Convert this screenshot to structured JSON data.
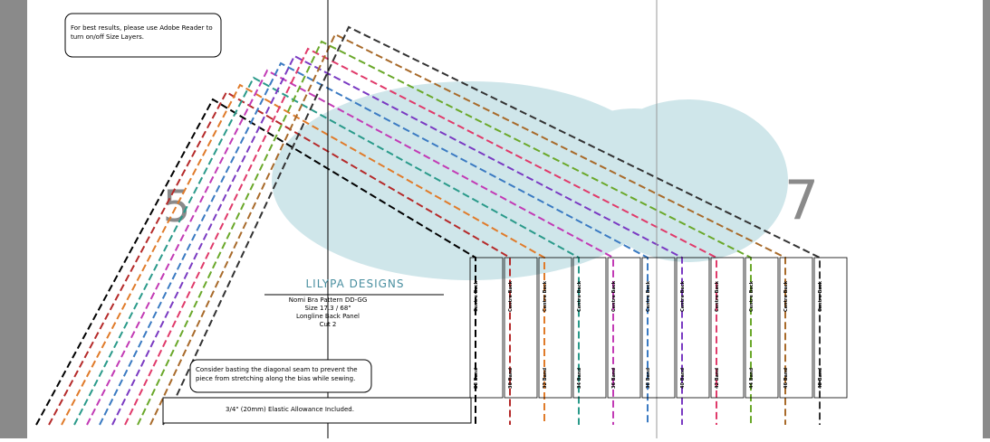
{
  "notes": {
    "layers": "For best results, please use Adobe Reader to turn on/off Size Layers.",
    "basting": "Consider basting the diagonal seam to prevent the piece from stretching along the bias while sewing.",
    "elastic": "3/4\" (20mm) Elastic Allowance Included."
  },
  "page_numbers": [
    "5",
    "7"
  ],
  "logo": "LILYPA DESIGNS",
  "piece": {
    "pattern": "Nomi Bra Pattern DD-GG",
    "size": "Size 17.3 / 68\"",
    "name": "Longline Back Panel",
    "cut": "Cut 2"
  },
  "centre_back": "Centre Back",
  "bands": [
    "28 Band",
    "30 Band",
    "32 Band",
    "34 Band",
    "36 Band",
    "38 Band",
    "40 Band",
    "42 Band",
    "44 Band",
    "46 Band",
    "48 Band"
  ]
}
